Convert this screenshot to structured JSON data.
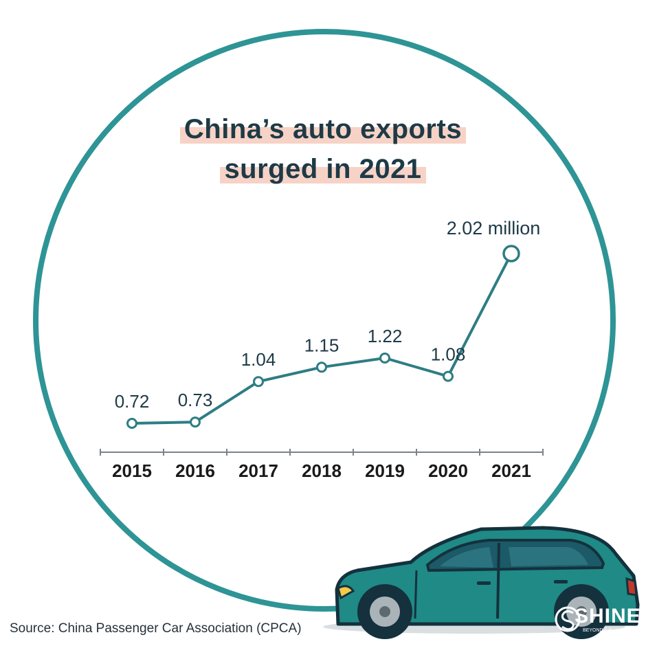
{
  "title_line1": "China’s auto exports",
  "title_line2": "surged in 2021",
  "source": "Source: China Passenger Car Association (CPCA)",
  "logo": {
    "word": "SHINE",
    "tagline": "BEYOND A S"
  },
  "colors": {
    "line": "#2e7d84",
    "ring": "#2e9495",
    "title_highlight": "#f6d3c6",
    "text": "#1e3a47",
    "car_body": "#1f8a86"
  },
  "chart_data": {
    "type": "line",
    "categories": [
      "2015",
      "2016",
      "2017",
      "2018",
      "2019",
      "2020",
      "2021"
    ],
    "values": [
      0.72,
      0.73,
      1.04,
      1.15,
      1.22,
      1.08,
      2.02
    ],
    "labels": [
      "0.72",
      "0.73",
      "1.04",
      "1.15",
      "1.22",
      "1.08",
      "2.02 million"
    ],
    "title": "China’s auto exports surged in 2021",
    "xlabel": "",
    "ylabel": "",
    "ylim": [
      0,
      2.2
    ],
    "grid": false,
    "legend": "none"
  }
}
